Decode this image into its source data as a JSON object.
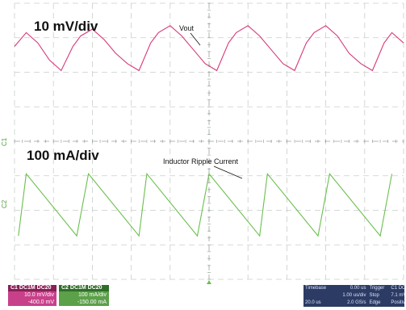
{
  "chart_data": {
    "type": "line",
    "title": "",
    "xlabel": "",
    "ylabel": "",
    "grid": true,
    "x_divisions": 10,
    "y_divisions": 8,
    "series": [
      {
        "name": "Vout",
        "color": "#d63a7a",
        "scale_label": "10 mV/div",
        "x": [
          0,
          0.3,
          0.6,
          0.9,
          1.2,
          1.5,
          1.7,
          2.0,
          2.3,
          2.6,
          2.9,
          3.2,
          3.5,
          3.7,
          4.0,
          4.3,
          4.6,
          4.9,
          5.2,
          5.5,
          5.7,
          6.0,
          6.3,
          6.6,
          6.9,
          7.2,
          7.5,
          7.7,
          8.0,
          8.3,
          8.6,
          8.9,
          9.2,
          9.5,
          9.7,
          10.0
        ],
        "y": [
          0.2,
          0.6,
          0.3,
          -0.2,
          -0.5,
          0.2,
          0.5,
          0.7,
          0.4,
          0.0,
          -0.3,
          -0.5,
          0.3,
          0.6,
          0.8,
          0.5,
          0.1,
          -0.3,
          -0.5,
          0.3,
          0.6,
          0.8,
          0.5,
          0.1,
          -0.3,
          -0.5,
          0.3,
          0.6,
          0.8,
          0.5,
          0.0,
          -0.3,
          -0.5,
          0.3,
          0.6,
          0.3
        ]
      },
      {
        "name": "Inductor Ripple Current",
        "color": "#6bbf4e",
        "scale_label": "100 mA/div",
        "x": [
          0.1,
          0.3,
          1.6,
          1.9,
          3.2,
          3.4,
          4.7,
          5.0,
          6.3,
          6.5,
          7.8,
          8.1,
          9.4,
          9.7
        ],
        "y": [
          -0.8,
          1.0,
          -0.8,
          1.0,
          -0.8,
          1.0,
          -0.8,
          1.0,
          -0.8,
          1.0,
          -0.8,
          1.0,
          -0.8,
          1.0
        ]
      }
    ],
    "annotations": [
      "Vout",
      "Inductor Ripple Current"
    ]
  },
  "side_markers": [
    "C1",
    "C2"
  ],
  "channel_boxes": [
    {
      "head": "C1  DC1M  DC20",
      "line1": "10.0 mV/div",
      "line2": "-400.0 mV",
      "color": "#c8408a",
      "head_color": "#8a1f57"
    },
    {
      "head": "C2  DC1M  DC20",
      "line1": "100 mA/div",
      "line2": "-150.00 mA",
      "color": "#5ca04a",
      "head_color": "#2f6e28"
    }
  ],
  "timebase": {
    "rows": [
      [
        "Timebase",
        "0.00 us",
        "Trigger",
        "C1 DC"
      ],
      [
        "",
        "1.00 us/div",
        "Stop",
        "7.1 mV"
      ],
      [
        "20.0 us",
        "2.0 GS/s",
        "Edge",
        "Positive"
      ]
    ]
  }
}
